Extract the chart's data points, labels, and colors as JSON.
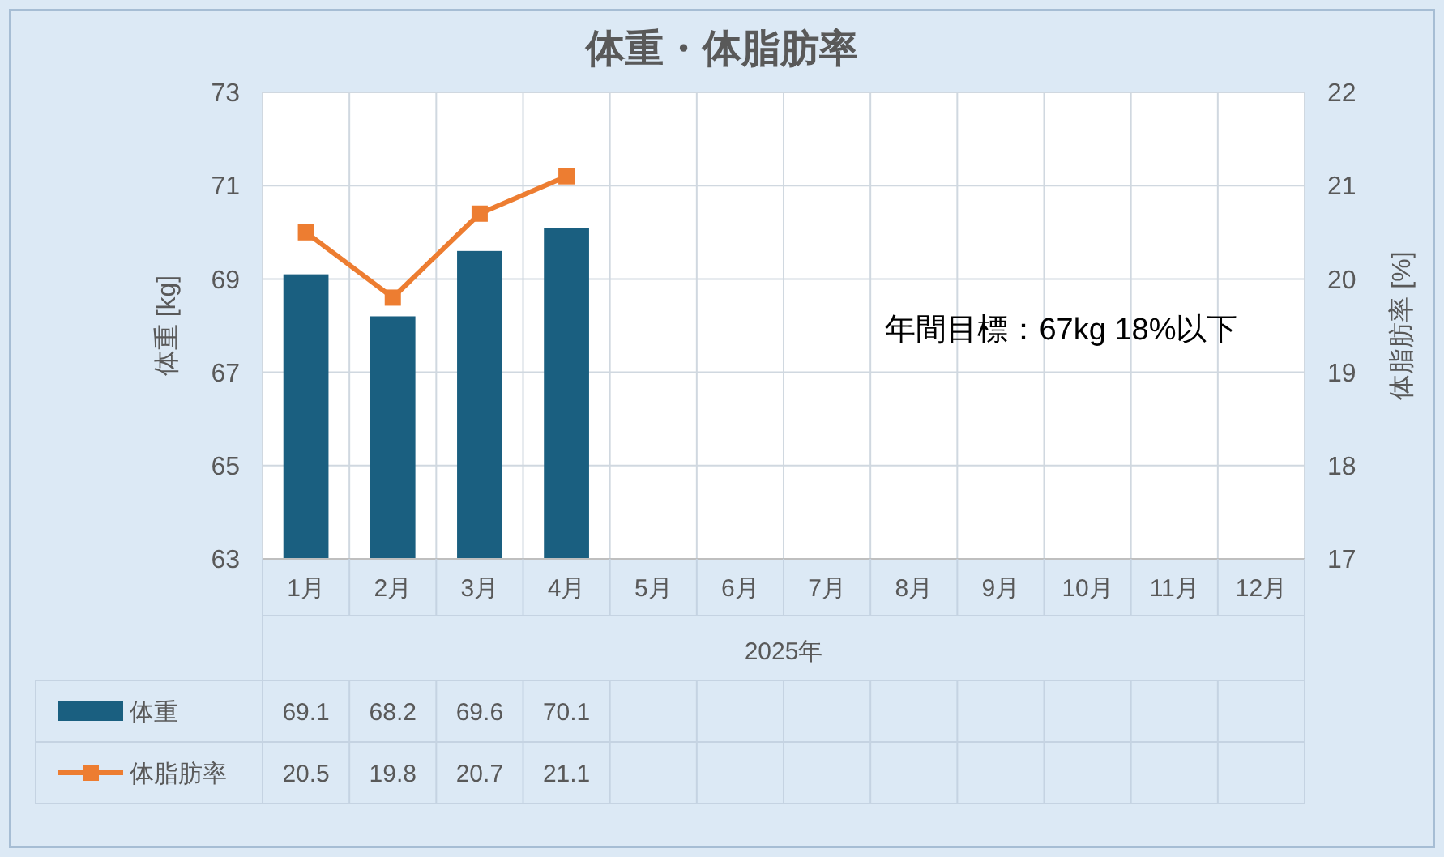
{
  "chart_data": {
    "type": "bar",
    "title": "体重・体脂肪率",
    "xlabel": "2025年",
    "ylabel": "体重 [kg]",
    "y2label": "体脂肪率 [%]",
    "categories": [
      "1月",
      "2月",
      "3月",
      "4月",
      "5月",
      "6月",
      "7月",
      "8月",
      "9月",
      "10月",
      "11月",
      "12月"
    ],
    "series": [
      {
        "name": "体重",
        "color": "#1a5f80",
        "values": [
          69.1,
          68.2,
          69.6,
          70.1,
          null,
          null,
          null,
          null,
          null,
          null,
          null,
          null
        ]
      },
      {
        "name": "体脂肪率",
        "type": "line",
        "axis": "y2",
        "color": "#ed7d31",
        "marker": "square",
        "values": [
          20.5,
          19.8,
          20.7,
          21.1,
          null,
          null,
          null,
          null,
          null,
          null,
          null,
          null
        ]
      }
    ],
    "ylim": [
      63,
      73
    ],
    "yticks": [
      63,
      65,
      67,
      69,
      71,
      73
    ],
    "y2lim": [
      17,
      22
    ],
    "y2ticks": [
      17,
      18,
      19,
      20,
      21,
      22
    ],
    "grid": true,
    "legend": "bottom",
    "data_labels": true,
    "annotations": [
      "年間目標：67kg 18%以下"
    ]
  }
}
